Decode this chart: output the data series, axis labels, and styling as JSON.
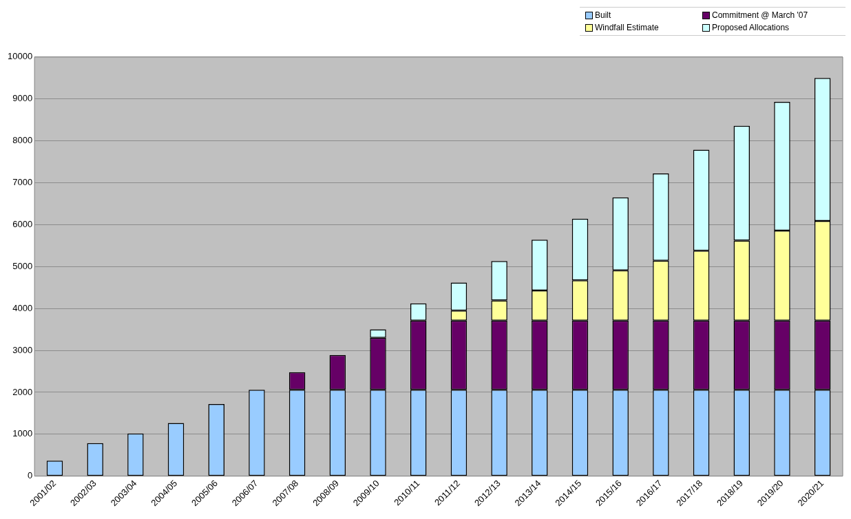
{
  "chart_data": {
    "type": "bar",
    "stacked": true,
    "legend": "top right",
    "grid": "y",
    "categories": [
      "2001/02",
      "2002/03",
      "2003/04",
      "2004/05",
      "2005/06",
      "2006/07",
      "2007/08",
      "2008/09",
      "2009/10",
      "2010/11",
      "2011/12",
      "2012/13",
      "2013/14",
      "2014/15",
      "2015/16",
      "2016/17",
      "2017/18",
      "2018/19",
      "2019/20",
      "2020/21"
    ],
    "ylim": [
      0,
      10000
    ],
    "yticks": [
      0,
      1000,
      2000,
      3000,
      4000,
      5000,
      6000,
      7000,
      8000,
      9000,
      10000
    ],
    "series": [
      {
        "name": "Built",
        "color": "#99ccff",
        "values": [
          370,
          790,
          1020,
          1270,
          1720,
          2060,
          2060,
          2060,
          2060,
          2060,
          2060,
          2060,
          2060,
          2060,
          2060,
          2060,
          2060,
          2060,
          2060,
          2060
        ]
      },
      {
        "name": "Commitment @ March '07",
        "color": "#660066",
        "values": [
          null,
          null,
          null,
          null,
          null,
          null,
          420,
          830,
          1240,
          1650,
          1650,
          1650,
          1650,
          1650,
          1650,
          1650,
          1650,
          1650,
          1650,
          1650
        ]
      },
      {
        "name": "Windfall Estimate",
        "color": "#ffff99",
        "values": [
          null,
          null,
          null,
          null,
          null,
          null,
          null,
          null,
          null,
          null,
          240,
          480,
          720,
          960,
          1200,
          1430,
          1670,
          1910,
          2150,
          2380
        ]
      },
      {
        "name": "Proposed Allocations",
        "color": "#ccffff",
        "values": [
          null,
          null,
          null,
          null,
          null,
          null,
          null,
          null,
          200,
          410,
          670,
          940,
          1210,
          1470,
          1740,
          2080,
          2410,
          2740,
          3070,
          3410
        ]
      }
    ]
  }
}
